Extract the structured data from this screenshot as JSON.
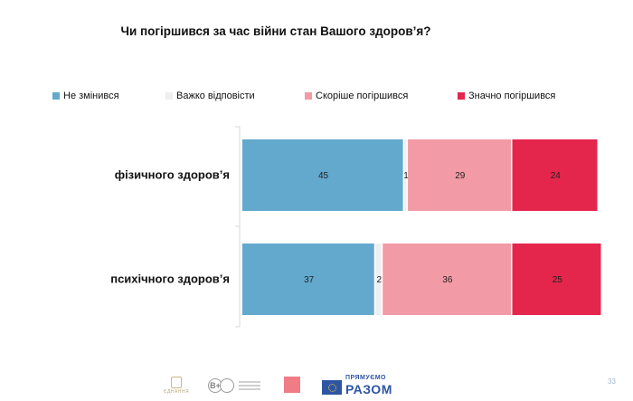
{
  "title": "Чи погіршився за час війни стан Вашого здоров’я?",
  "colors": {
    "not_changed": "#63a9cd",
    "hard_to_say": "#efefef",
    "rather_worse": "#f29aa5",
    "much_worse": "#e4264c"
  },
  "legend": [
    {
      "label": "Не змінився",
      "color": "#63a9cd"
    },
    {
      "label": "Важко відповісти",
      "color": "#efefef"
    },
    {
      "label": "Скоріше погіршився",
      "color": "#f29aa5"
    },
    {
      "label": "Значно погіршився",
      "color": "#e4264c"
    }
  ],
  "chart_data": {
    "type": "bar",
    "orientation": "horizontal",
    "stacked": true,
    "title": "Чи погіршився за час війни стан Вашого здоров’я?",
    "categories": [
      "фізичного здоров’я",
      "психічного здоров’я"
    ],
    "series": [
      {
        "name": "Не змінився",
        "color": "#63a9cd",
        "values": [
          45,
          37
        ]
      },
      {
        "name": "Важко відповісти",
        "color": "#efefef",
        "values": [
          1,
          2
        ]
      },
      {
        "name": "Скоріше погіршився",
        "color": "#f29aa5",
        "values": [
          29,
          36
        ]
      },
      {
        "name": "Значно погіршився",
        "color": "#e4264c",
        "values": [
          24,
          25
        ]
      }
    ],
    "xlim": [
      0,
      100
    ],
    "legend_position": "top",
    "grid": false
  },
  "footer": {
    "logos": [
      "ЄДНАННЯ",
      "B+",
      "ПРЯМУЄМО",
      "РАЗОМ"
    ],
    "page_number": "33"
  }
}
